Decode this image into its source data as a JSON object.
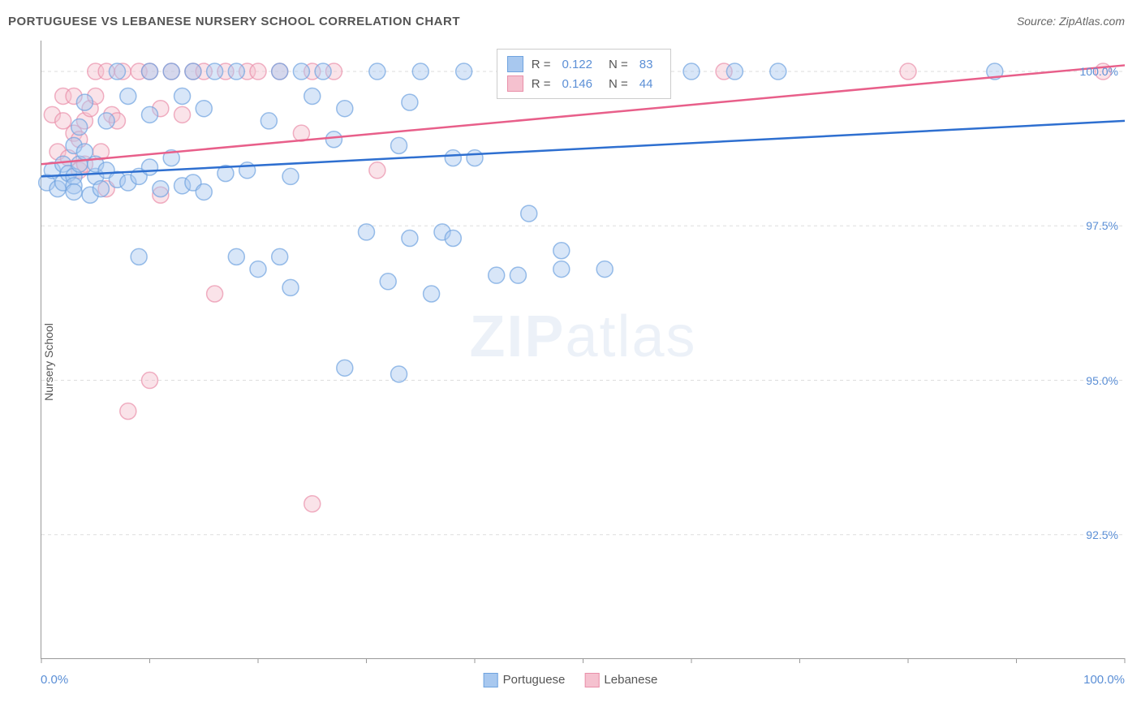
{
  "title": "PORTUGUESE VS LEBANESE NURSERY SCHOOL CORRELATION CHART",
  "source": "Source: ZipAtlas.com",
  "y_axis_label": "Nursery School",
  "x_min_label": "0.0%",
  "x_max_label": "100.0%",
  "watermark_bold": "ZIP",
  "watermark_light": "atlas",
  "chart": {
    "type": "scatter",
    "xlim": [
      0,
      100
    ],
    "ylim": [
      90.5,
      100.5
    ],
    "y_ticks": [
      92.5,
      95.0,
      97.5,
      100.0
    ],
    "y_tick_labels": [
      "92.5%",
      "95.0%",
      "97.5%",
      "100.0%"
    ],
    "x_ticks": [
      0,
      10,
      20,
      30,
      40,
      50,
      60,
      70,
      80,
      90,
      100
    ],
    "grid_color": "#dddddd",
    "axis_color": "#999999",
    "background_color": "#ffffff",
    "marker_radius": 10,
    "marker_opacity": 0.45,
    "marker_stroke_width": 1.5,
    "line_width": 2.5,
    "series": [
      {
        "name": "Portuguese",
        "color_fill": "#a8c8ef",
        "color_stroke": "#6fa3df",
        "line_color": "#2e6fd0",
        "trend": {
          "x1": 0,
          "y1": 98.3,
          "x2": 100,
          "y2": 99.2
        },
        "R": "0.122",
        "N": "83",
        "points": [
          [
            0.5,
            98.2
          ],
          [
            1,
            98.4
          ],
          [
            1.5,
            98.1
          ],
          [
            2,
            98.5
          ],
          [
            2,
            98.2
          ],
          [
            2.5,
            98.35
          ],
          [
            3,
            98.8
          ],
          [
            3,
            98.3
          ],
          [
            3,
            98.15
          ],
          [
            3,
            98.05
          ],
          [
            3.5,
            99.1
          ],
          [
            3.5,
            98.5
          ],
          [
            4,
            99.5
          ],
          [
            4,
            98.7
          ],
          [
            4.5,
            98.0
          ],
          [
            5,
            98.3
          ],
          [
            5,
            98.5
          ],
          [
            5.5,
            98.1
          ],
          [
            6,
            99.2
          ],
          [
            6,
            98.4
          ],
          [
            7,
            100.0
          ],
          [
            7,
            98.25
          ],
          [
            8,
            99.6
          ],
          [
            8,
            98.2
          ],
          [
            9,
            98.3
          ],
          [
            9,
            97.0
          ],
          [
            10,
            100.0
          ],
          [
            10,
            99.3
          ],
          [
            10,
            98.45
          ],
          [
            11,
            98.1
          ],
          [
            12,
            100.0
          ],
          [
            12,
            98.6
          ],
          [
            13,
            99.6
          ],
          [
            13,
            98.15
          ],
          [
            14,
            100.0
          ],
          [
            14,
            98.2
          ],
          [
            15,
            99.4
          ],
          [
            15,
            98.05
          ],
          [
            16,
            100.0
          ],
          [
            17,
            98.35
          ],
          [
            18,
            100.0
          ],
          [
            18,
            97.0
          ],
          [
            19,
            98.4
          ],
          [
            20,
            96.8
          ],
          [
            21,
            99.2
          ],
          [
            22,
            100.0
          ],
          [
            22,
            97.0
          ],
          [
            23,
            98.3
          ],
          [
            23,
            96.5
          ],
          [
            24,
            100.0
          ],
          [
            25,
            99.6
          ],
          [
            26,
            100.0
          ],
          [
            27,
            98.9
          ],
          [
            28,
            95.2
          ],
          [
            28,
            99.4
          ],
          [
            30,
            97.4
          ],
          [
            31,
            100.0
          ],
          [
            32,
            96.6
          ],
          [
            33,
            98.8
          ],
          [
            33,
            95.1
          ],
          [
            34,
            97.3
          ],
          [
            34,
            99.5
          ],
          [
            35,
            100.0
          ],
          [
            36,
            96.4
          ],
          [
            37,
            97.4
          ],
          [
            38,
            98.6
          ],
          [
            38,
            97.3
          ],
          [
            39,
            100.0
          ],
          [
            40,
            98.6
          ],
          [
            42,
            96.7
          ],
          [
            43,
            100.0
          ],
          [
            44,
            96.7
          ],
          [
            45,
            97.7
          ],
          [
            47,
            100.0
          ],
          [
            48,
            96.8
          ],
          [
            48,
            97.1
          ],
          [
            50,
            100.0
          ],
          [
            52,
            96.8
          ],
          [
            53,
            100.0
          ],
          [
            60,
            100.0
          ],
          [
            64,
            100.0
          ],
          [
            68,
            100.0
          ],
          [
            88,
            100.0
          ]
        ]
      },
      {
        "name": "Lebanese",
        "color_fill": "#f5c1cf",
        "color_stroke": "#e98fa9",
        "line_color": "#e85f8a",
        "trend": {
          "x1": 0,
          "y1": 98.5,
          "x2": 100,
          "y2": 100.1
        },
        "R": "0.146",
        "N": "44",
        "points": [
          [
            1,
            99.3
          ],
          [
            1.5,
            98.7
          ],
          [
            2,
            99.6
          ],
          [
            2,
            99.2
          ],
          [
            2.5,
            98.6
          ],
          [
            3,
            99.6
          ],
          [
            3,
            99.0
          ],
          [
            3.5,
            98.9
          ],
          [
            3.5,
            98.4
          ],
          [
            4,
            99.2
          ],
          [
            4,
            98.5
          ],
          [
            4.5,
            99.4
          ],
          [
            5,
            100.0
          ],
          [
            5,
            99.6
          ],
          [
            5.5,
            98.7
          ],
          [
            6,
            100.0
          ],
          [
            6,
            98.1
          ],
          [
            6.5,
            99.3
          ],
          [
            7,
            99.2
          ],
          [
            7.5,
            100.0
          ],
          [
            8,
            94.5
          ],
          [
            9,
            100.0
          ],
          [
            10,
            100.0
          ],
          [
            10,
            95.0
          ],
          [
            11,
            99.4
          ],
          [
            11,
            98.0
          ],
          [
            12,
            100.0
          ],
          [
            13,
            99.3
          ],
          [
            14,
            100.0
          ],
          [
            15,
            100.0
          ],
          [
            16,
            96.4
          ],
          [
            17,
            100.0
          ],
          [
            19,
            100.0
          ],
          [
            20,
            100.0
          ],
          [
            22,
            100.0
          ],
          [
            24,
            99.0
          ],
          [
            25,
            100.0
          ],
          [
            25,
            93.0
          ],
          [
            27,
            100.0
          ],
          [
            31,
            98.4
          ],
          [
            48,
            100.0
          ],
          [
            63,
            100.0
          ],
          [
            80,
            100.0
          ],
          [
            98,
            100.0
          ]
        ]
      }
    ]
  },
  "legend": {
    "series1_label": "Portuguese",
    "series2_label": "Lebanese"
  },
  "stats_labels": {
    "r_label": "R =",
    "n_label": "N ="
  }
}
